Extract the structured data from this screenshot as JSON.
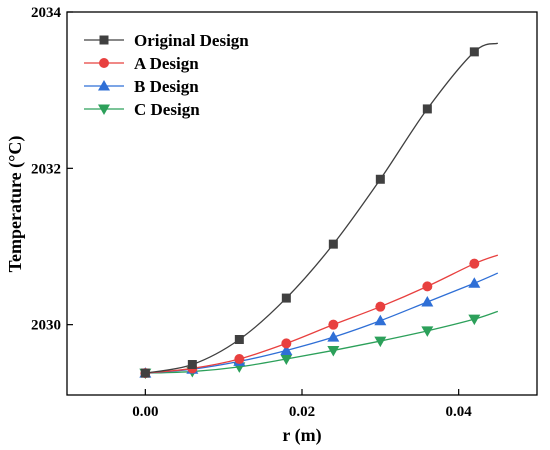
{
  "chart_data": {
    "type": "line",
    "xlabel": "r (m)",
    "ylabel": "Temperature (°C)",
    "xlim": [
      -0.01,
      0.05
    ],
    "ylim": [
      2029.1,
      2034.0
    ],
    "x_ticks": [
      0.0,
      0.02,
      0.04
    ],
    "x_tick_labels": [
      "0.00",
      "0.02",
      "0.04"
    ],
    "y_ticks": [
      2030,
      2032,
      2034
    ],
    "y_tick_labels": [
      "2030",
      "2032",
      "2034"
    ],
    "legend_position": "top-left",
    "grid": false,
    "x": [
      0.0,
      0.006,
      0.012,
      0.018,
      0.024,
      0.03,
      0.036,
      0.042,
      0.045
    ],
    "series": [
      {
        "name": "Original Design",
        "color": "#404040",
        "marker": "square",
        "values": [
          2029.38,
          2029.49,
          2029.81,
          2030.34,
          2031.03,
          2031.86,
          2032.76,
          2033.49,
          2033.6
        ]
      },
      {
        "name": "A Design",
        "color": "#e8403f",
        "marker": "circle",
        "values": [
          2029.38,
          2029.44,
          2029.56,
          2029.76,
          2030.0,
          2030.23,
          2030.49,
          2030.78,
          2030.89
        ]
      },
      {
        "name": "B Design",
        "color": "#2f6fd6",
        "marker": "triangle-up",
        "values": [
          2029.38,
          2029.43,
          2029.53,
          2029.67,
          2029.84,
          2030.05,
          2030.29,
          2030.53,
          2030.66
        ]
      },
      {
        "name": "C Design",
        "color": "#2ca05a",
        "marker": "triangle-down",
        "values": [
          2029.38,
          2029.4,
          2029.46,
          2029.56,
          2029.67,
          2029.79,
          2029.92,
          2030.07,
          2030.17
        ]
      }
    ]
  }
}
